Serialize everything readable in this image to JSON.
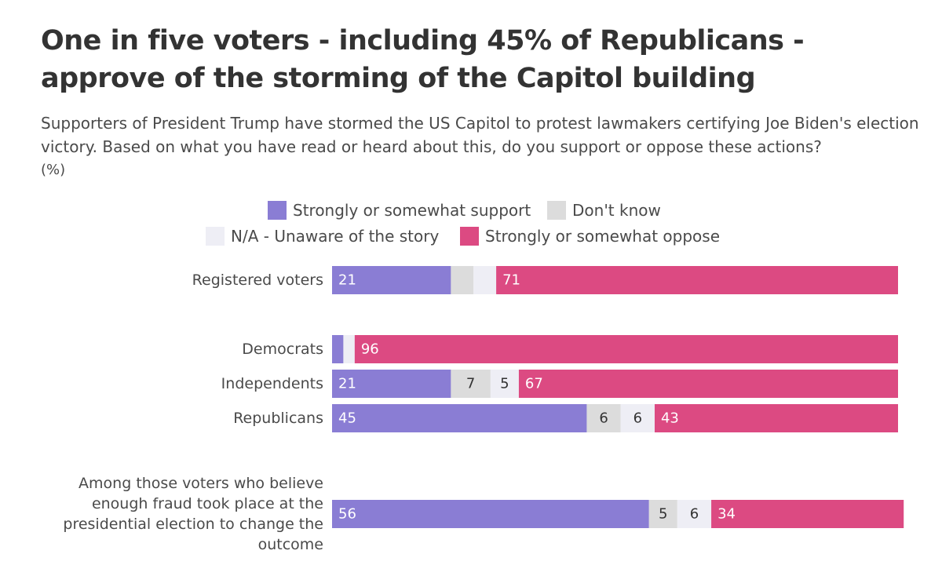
{
  "title": "One in five voters - including 45% of Republicans - approve of the storming of the Capitol building",
  "subtitle": "Supporters of President Trump have stormed the US Capitol to protest lawmakers certifying Joe Biden's election victory. Based on what you have read or heard about this, do you support or oppose these actions?",
  "unit_note": "(%)",
  "colors": {
    "support": "#8a7dd4",
    "dont_know": "#dcdcdc",
    "na": "#eeeef5",
    "oppose": "#dc4a82"
  },
  "chart_data": {
    "type": "bar",
    "orientation": "horizontal",
    "stacked": true,
    "xlim": [
      0,
      100
    ],
    "legend": [
      "Strongly or somewhat support",
      "Don't know",
      "N/A - Unaware of the story",
      "Strongly or somewhat oppose"
    ],
    "categories": [
      [
        "Registered voters"
      ],
      [
        "Democrats"
      ],
      [
        "Independents"
      ],
      [
        "Republicans"
      ],
      [
        "Among those voters who believe",
        "enough fraud took place at the",
        "presidential election to change the",
        "outcome"
      ]
    ],
    "series": [
      {
        "name": "Strongly or somewhat support",
        "values": [
          21,
          2,
          21,
          45,
          56
        ],
        "labels": [
          "21",
          "",
          "21",
          "45",
          "56"
        ]
      },
      {
        "name": "Don't know",
        "values": [
          4,
          0,
          7,
          6,
          5
        ],
        "labels": [
          "",
          "",
          "7",
          "6",
          "5"
        ]
      },
      {
        "name": "N/A - Unaware of the story",
        "values": [
          4,
          2,
          5,
          6,
          6
        ],
        "labels": [
          "",
          "",
          "5",
          "6",
          "6"
        ]
      },
      {
        "name": "Strongly or somewhat oppose",
        "values": [
          71,
          96,
          67,
          43,
          34
        ],
        "labels": [
          "71",
          "96",
          "67",
          "43",
          "34"
        ]
      }
    ]
  }
}
